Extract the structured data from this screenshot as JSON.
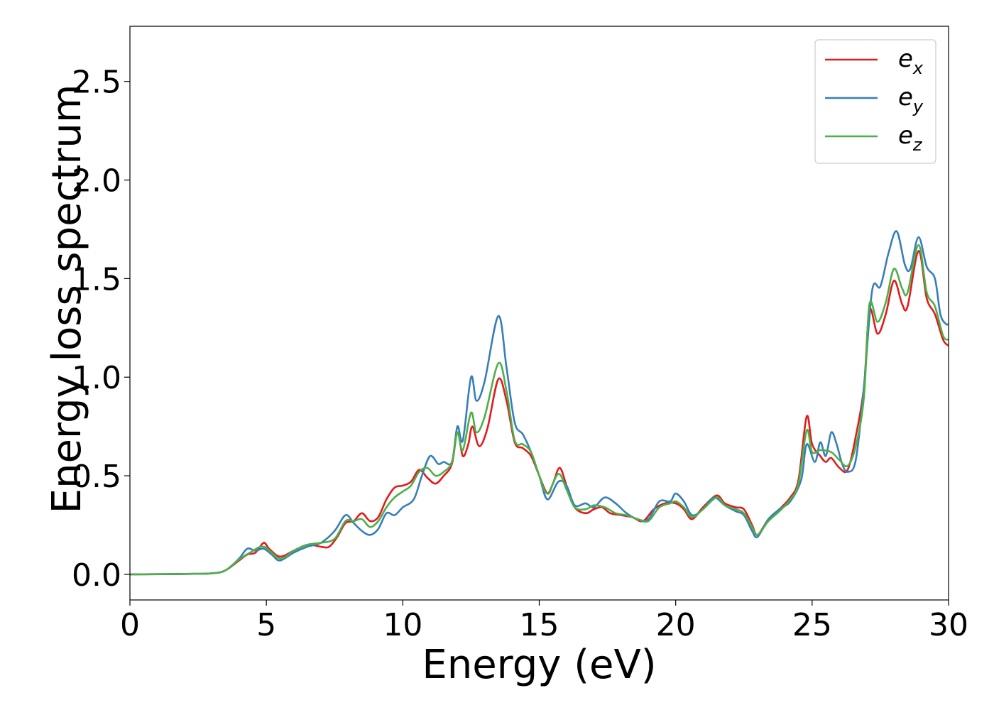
{
  "chart_data": {
    "type": "line",
    "title": "",
    "xlabel": "Energy (eV)",
    "ylabel": "Energy loss spectrum",
    "xlim": [
      0,
      30
    ],
    "ylim": [
      -0.13,
      2.78
    ],
    "xticks": [
      0,
      5,
      10,
      15,
      20,
      25,
      30
    ],
    "xtick_labels": [
      "0",
      "5",
      "10",
      "15",
      "20",
      "25",
      "30"
    ],
    "yticks": [
      0.0,
      0.5,
      1.0,
      1.5,
      2.0,
      2.5
    ],
    "ytick_labels": [
      "0.0",
      "0.5",
      "1.0",
      "1.5",
      "2.0",
      "2.5"
    ],
    "grid": false,
    "legend_position": "top-right",
    "series": [
      {
        "name": "e_x",
        "label_main": "e",
        "label_sub": "x",
        "color": "#e41a1c",
        "points": [
          [
            0,
            0
          ],
          [
            2,
            0.002
          ],
          [
            3,
            0.005
          ],
          [
            3.5,
            0.02
          ],
          [
            4,
            0.07
          ],
          [
            4.3,
            0.1
          ],
          [
            4.6,
            0.11
          ],
          [
            4.9,
            0.16
          ],
          [
            5.1,
            0.13
          ],
          [
            5.5,
            0.09
          ],
          [
            6,
            0.12
          ],
          [
            6.5,
            0.15
          ],
          [
            7,
            0.14
          ],
          [
            7.3,
            0.14
          ],
          [
            7.6,
            0.19
          ],
          [
            7.9,
            0.26
          ],
          [
            8.2,
            0.27
          ],
          [
            8.5,
            0.31
          ],
          [
            8.8,
            0.27
          ],
          [
            9.1,
            0.29
          ],
          [
            9.4,
            0.38
          ],
          [
            9.7,
            0.44
          ],
          [
            10,
            0.45
          ],
          [
            10.3,
            0.47
          ],
          [
            10.6,
            0.53
          ],
          [
            10.9,
            0.49
          ],
          [
            11.2,
            0.46
          ],
          [
            11.5,
            0.5
          ],
          [
            11.8,
            0.56
          ],
          [
            12,
            0.72
          ],
          [
            12.2,
            0.6
          ],
          [
            12.4,
            0.66
          ],
          [
            12.55,
            0.75
          ],
          [
            12.8,
            0.65
          ],
          [
            13.1,
            0.74
          ],
          [
            13.5,
            0.99
          ],
          [
            13.8,
            0.88
          ],
          [
            14.1,
            0.67
          ],
          [
            14.4,
            0.64
          ],
          [
            14.7,
            0.6
          ],
          [
            15,
            0.5
          ],
          [
            15.3,
            0.41
          ],
          [
            15.5,
            0.46
          ],
          [
            15.75,
            0.54
          ],
          [
            16,
            0.45
          ],
          [
            16.3,
            0.34
          ],
          [
            16.7,
            0.31
          ],
          [
            17,
            0.33
          ],
          [
            17.3,
            0.34
          ],
          [
            17.6,
            0.31
          ],
          [
            18,
            0.3
          ],
          [
            18.4,
            0.29
          ],
          [
            18.8,
            0.27
          ],
          [
            19.2,
            0.33
          ],
          [
            19.6,
            0.36
          ],
          [
            20,
            0.36
          ],
          [
            20.3,
            0.33
          ],
          [
            20.6,
            0.28
          ],
          [
            21,
            0.34
          ],
          [
            21.5,
            0.4
          ],
          [
            21.8,
            0.36
          ],
          [
            22.2,
            0.34
          ],
          [
            22.5,
            0.33
          ],
          [
            22.8,
            0.25
          ],
          [
            23,
            0.2
          ],
          [
            23.4,
            0.28
          ],
          [
            23.8,
            0.33
          ],
          [
            24.2,
            0.39
          ],
          [
            24.5,
            0.48
          ],
          [
            24.8,
            0.8
          ],
          [
            25,
            0.66
          ],
          [
            25.3,
            0.6
          ],
          [
            25.5,
            0.57
          ],
          [
            25.7,
            0.59
          ],
          [
            26,
            0.54
          ],
          [
            26.3,
            0.53
          ],
          [
            26.6,
            0.7
          ],
          [
            26.9,
            0.95
          ],
          [
            27.1,
            1.34
          ],
          [
            27.4,
            1.22
          ],
          [
            27.7,
            1.32
          ],
          [
            28,
            1.49
          ],
          [
            28.3,
            1.37
          ],
          [
            28.5,
            1.36
          ],
          [
            28.9,
            1.64
          ],
          [
            29.2,
            1.4
          ],
          [
            29.5,
            1.32
          ],
          [
            29.8,
            1.19
          ],
          [
            30,
            1.16
          ]
        ]
      },
      {
        "name": "e_y",
        "label_main": "e",
        "label_sub": "y",
        "color": "#377eb8",
        "points": [
          [
            0,
            0
          ],
          [
            2,
            0.002
          ],
          [
            3,
            0.005
          ],
          [
            3.5,
            0.02
          ],
          [
            4,
            0.08
          ],
          [
            4.3,
            0.13
          ],
          [
            4.6,
            0.12
          ],
          [
            4.9,
            0.13
          ],
          [
            5.2,
            0.1
          ],
          [
            5.5,
            0.07
          ],
          [
            6,
            0.11
          ],
          [
            6.5,
            0.14
          ],
          [
            7,
            0.16
          ],
          [
            7.5,
            0.22
          ],
          [
            7.9,
            0.3
          ],
          [
            8.2,
            0.26
          ],
          [
            8.5,
            0.22
          ],
          [
            8.8,
            0.2
          ],
          [
            9.1,
            0.23
          ],
          [
            9.4,
            0.31
          ],
          [
            9.7,
            0.3
          ],
          [
            10,
            0.34
          ],
          [
            10.4,
            0.38
          ],
          [
            10.7,
            0.5
          ],
          [
            11,
            0.6
          ],
          [
            11.3,
            0.56
          ],
          [
            11.5,
            0.57
          ],
          [
            11.8,
            0.57
          ],
          [
            12,
            0.75
          ],
          [
            12.2,
            0.68
          ],
          [
            12.5,
            1.0
          ],
          [
            12.7,
            0.88
          ],
          [
            13,
            0.98
          ],
          [
            13.5,
            1.31
          ],
          [
            13.8,
            1.05
          ],
          [
            14.1,
            0.77
          ],
          [
            14.4,
            0.71
          ],
          [
            14.7,
            0.62
          ],
          [
            15,
            0.5
          ],
          [
            15.3,
            0.38
          ],
          [
            15.7,
            0.47
          ],
          [
            16,
            0.45
          ],
          [
            16.3,
            0.35
          ],
          [
            16.7,
            0.36
          ],
          [
            17,
            0.34
          ],
          [
            17.4,
            0.39
          ],
          [
            17.8,
            0.36
          ],
          [
            18.2,
            0.31
          ],
          [
            18.6,
            0.28
          ],
          [
            19,
            0.28
          ],
          [
            19.4,
            0.37
          ],
          [
            19.8,
            0.37
          ],
          [
            20,
            0.41
          ],
          [
            20.3,
            0.37
          ],
          [
            20.6,
            0.3
          ],
          [
            21,
            0.33
          ],
          [
            21.4,
            0.39
          ],
          [
            21.8,
            0.35
          ],
          [
            22.2,
            0.32
          ],
          [
            22.5,
            0.3
          ],
          [
            22.8,
            0.22
          ],
          [
            23,
            0.19
          ],
          [
            23.4,
            0.28
          ],
          [
            23.8,
            0.33
          ],
          [
            24.2,
            0.37
          ],
          [
            24.6,
            0.48
          ],
          [
            24.8,
            0.66
          ],
          [
            25.1,
            0.57
          ],
          [
            25.3,
            0.67
          ],
          [
            25.5,
            0.6
          ],
          [
            25.7,
            0.72
          ],
          [
            25.9,
            0.66
          ],
          [
            26.1,
            0.56
          ],
          [
            26.3,
            0.52
          ],
          [
            26.6,
            0.58
          ],
          [
            26.9,
            0.95
          ],
          [
            27.2,
            1.44
          ],
          [
            27.5,
            1.46
          ],
          [
            27.8,
            1.63
          ],
          [
            28.1,
            1.74
          ],
          [
            28.4,
            1.57
          ],
          [
            28.6,
            1.55
          ],
          [
            28.9,
            1.71
          ],
          [
            29.2,
            1.56
          ],
          [
            29.5,
            1.5
          ],
          [
            29.7,
            1.32
          ],
          [
            29.9,
            1.27
          ],
          [
            30,
            1.27
          ]
        ]
      },
      {
        "name": "e_z",
        "label_main": "e",
        "label_sub": "z",
        "color": "#4daf4a",
        "points": [
          [
            0,
            0
          ],
          [
            2,
            0.002
          ],
          [
            3,
            0.005
          ],
          [
            3.5,
            0.02
          ],
          [
            4,
            0.075
          ],
          [
            4.4,
            0.11
          ],
          [
            4.9,
            0.14
          ],
          [
            5.5,
            0.08
          ],
          [
            6,
            0.12
          ],
          [
            6.5,
            0.15
          ],
          [
            7,
            0.16
          ],
          [
            7.5,
            0.18
          ],
          [
            7.9,
            0.27
          ],
          [
            8.2,
            0.27
          ],
          [
            8.5,
            0.28
          ],
          [
            8.8,
            0.24
          ],
          [
            9.1,
            0.27
          ],
          [
            9.4,
            0.34
          ],
          [
            9.7,
            0.39
          ],
          [
            10,
            0.42
          ],
          [
            10.3,
            0.45
          ],
          [
            10.6,
            0.52
          ],
          [
            10.9,
            0.54
          ],
          [
            11.2,
            0.5
          ],
          [
            11.5,
            0.52
          ],
          [
            11.8,
            0.57
          ],
          [
            12,
            0.72
          ],
          [
            12.2,
            0.63
          ],
          [
            12.5,
            0.82
          ],
          [
            12.7,
            0.72
          ],
          [
            13,
            0.8
          ],
          [
            13.5,
            1.07
          ],
          [
            13.8,
            0.93
          ],
          [
            14.1,
            0.68
          ],
          [
            14.4,
            0.66
          ],
          [
            14.7,
            0.62
          ],
          [
            15,
            0.5
          ],
          [
            15.3,
            0.41
          ],
          [
            15.7,
            0.51
          ],
          [
            16,
            0.43
          ],
          [
            16.3,
            0.34
          ],
          [
            16.7,
            0.33
          ],
          [
            17,
            0.35
          ],
          [
            17.4,
            0.34
          ],
          [
            17.8,
            0.31
          ],
          [
            18.2,
            0.3
          ],
          [
            18.6,
            0.28
          ],
          [
            19,
            0.27
          ],
          [
            19.4,
            0.34
          ],
          [
            19.8,
            0.36
          ],
          [
            20,
            0.37
          ],
          [
            20.3,
            0.34
          ],
          [
            20.6,
            0.29
          ],
          [
            21,
            0.33
          ],
          [
            21.5,
            0.39
          ],
          [
            21.8,
            0.35
          ],
          [
            22.2,
            0.33
          ],
          [
            22.5,
            0.31
          ],
          [
            22.8,
            0.24
          ],
          [
            23,
            0.2
          ],
          [
            23.4,
            0.27
          ],
          [
            23.8,
            0.32
          ],
          [
            24.2,
            0.38
          ],
          [
            24.5,
            0.46
          ],
          [
            24.8,
            0.73
          ],
          [
            25,
            0.62
          ],
          [
            25.3,
            0.63
          ],
          [
            25.7,
            0.62
          ],
          [
            26,
            0.58
          ],
          [
            26.3,
            0.55
          ],
          [
            26.6,
            0.65
          ],
          [
            26.9,
            0.9
          ],
          [
            27.1,
            1.37
          ],
          [
            27.4,
            1.28
          ],
          [
            27.7,
            1.38
          ],
          [
            28,
            1.55
          ],
          [
            28.3,
            1.45
          ],
          [
            28.5,
            1.43
          ],
          [
            28.9,
            1.67
          ],
          [
            29.2,
            1.43
          ],
          [
            29.5,
            1.36
          ],
          [
            29.8,
            1.21
          ],
          [
            30,
            1.19
          ]
        ]
      }
    ]
  }
}
